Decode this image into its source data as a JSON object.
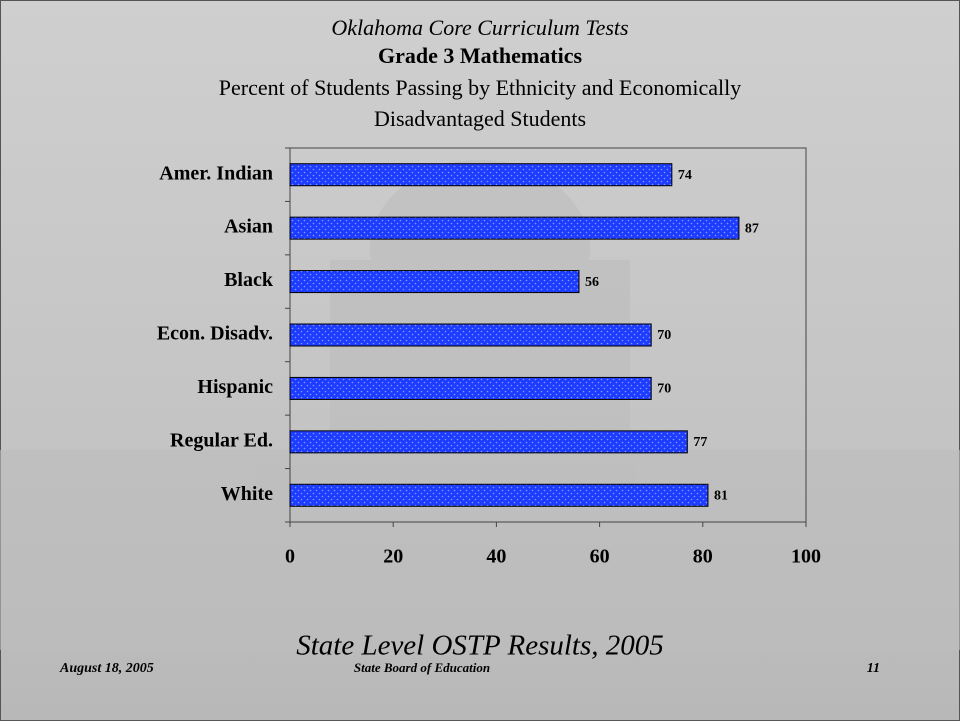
{
  "chart_data": {
    "type": "hbar",
    "title": "Oklahoma Core Curriculum Tests",
    "subtitle": "Grade 3 Mathematics",
    "description": [
      "Percent of Students Passing by Ethnicity and Economically",
      "Disadvantaged Students"
    ],
    "categories": [
      "Amer. Indian",
      "Asian",
      "Black",
      "Econ. Disadv.",
      "Hispanic",
      "Regular Ed.",
      "White"
    ],
    "values": [
      74,
      87,
      56,
      70,
      70,
      77,
      81
    ],
    "color": "#1e3cff",
    "xlim": [
      0,
      100
    ],
    "xticks": [
      0,
      20,
      40,
      60,
      80,
      100
    ]
  },
  "footer": {
    "heading": "State Level OSTP Results, 2005",
    "date": "August 18, 2005",
    "organization": "State Board of Education",
    "page": "11"
  }
}
